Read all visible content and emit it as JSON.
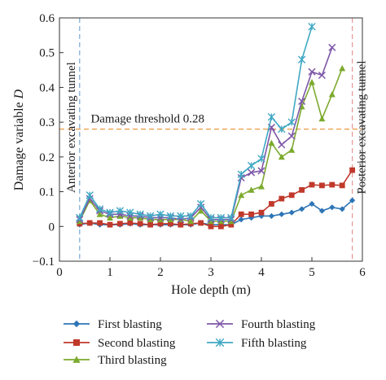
{
  "chart_data": {
    "type": "line",
    "xlabel": "Hole depth (m)",
    "ylabel": "Damage variable D",
    "xlim": [
      0,
      6
    ],
    "ylim": [
      -0.1,
      0.6
    ],
    "xticks": [
      "0",
      "1",
      "2",
      "3",
      "4",
      "5",
      "6"
    ],
    "yticks": [
      "−0.1",
      "0",
      "0.1",
      "0.2",
      "0.3",
      "0.4",
      "0.5",
      "0.6"
    ],
    "grid": false,
    "legend_position": "bottom",
    "threshold": {
      "value": 0.28,
      "label": "Damage threshold 0.28",
      "color": "#f0a050"
    },
    "vlines": [
      {
        "x": 0.4,
        "label": "Anterior excavating tunnel",
        "color": "#7aa7d8"
      },
      {
        "x": 5.8,
        "label": "Posterior excavating tunnel",
        "color": "#e89595"
      }
    ],
    "series": [
      {
        "name": "First blasting",
        "color": "#2e75b6",
        "marker": "diamond",
        "x": [
          0.4,
          0.6,
          0.8,
          1.0,
          1.2,
          1.4,
          1.6,
          1.8,
          2.0,
          2.2,
          2.4,
          2.6,
          2.8,
          3.0,
          3.2,
          3.4,
          3.6,
          3.8,
          4.0,
          4.2,
          4.4,
          4.6,
          4.8,
          5.0,
          5.2,
          5.4,
          5.6,
          5.8
        ],
        "y": [
          0.005,
          0.01,
          0.005,
          0.005,
          0.005,
          0.008,
          0.005,
          0.005,
          0.005,
          0.005,
          0.005,
          0.005,
          0.01,
          0.005,
          0.005,
          0.005,
          0.02,
          0.025,
          0.03,
          0.03,
          0.035,
          0.04,
          0.05,
          0.065,
          0.045,
          0.055,
          0.05,
          0.075
        ]
      },
      {
        "name": "Second blasting",
        "color": "#c0392b",
        "marker": "square",
        "x": [
          0.4,
          0.6,
          0.8,
          1.0,
          1.2,
          1.4,
          1.6,
          1.8,
          2.0,
          2.2,
          2.4,
          2.6,
          2.8,
          3.0,
          3.2,
          3.4,
          3.6,
          3.8,
          4.0,
          4.2,
          4.4,
          4.6,
          4.8,
          5.0,
          5.2,
          5.4,
          5.6,
          5.8
        ],
        "y": [
          0.008,
          0.01,
          0.01,
          0.005,
          0.008,
          0.01,
          0.008,
          0.005,
          0.008,
          0.008,
          0.005,
          0.008,
          0.01,
          0.0,
          0.0,
          0.005,
          0.035,
          0.035,
          0.04,
          0.065,
          0.08,
          0.09,
          0.105,
          0.12,
          0.118,
          0.12,
          0.118,
          0.162
        ]
      },
      {
        "name": "Third blasting",
        "color": "#7caa2e",
        "marker": "triangle",
        "x": [
          0.4,
          0.6,
          0.8,
          1.0,
          1.2,
          1.4,
          1.6,
          1.8,
          2.0,
          2.2,
          2.4,
          2.6,
          2.8,
          3.0,
          3.2,
          3.4,
          3.6,
          3.8,
          4.0,
          4.2,
          4.4,
          4.6,
          4.8,
          5.0,
          5.2,
          5.4,
          5.6
        ],
        "y": [
          0.015,
          0.075,
          0.035,
          0.025,
          0.03,
          0.025,
          0.025,
          0.02,
          0.02,
          0.02,
          0.02,
          0.015,
          0.045,
          0.015,
          0.015,
          0.015,
          0.09,
          0.105,
          0.115,
          0.24,
          0.2,
          0.22,
          0.345,
          0.415,
          0.31,
          0.38,
          0.455
        ]
      },
      {
        "name": "Fourth blasting",
        "color": "#7e57a7",
        "marker": "x",
        "x": [
          0.4,
          0.6,
          0.8,
          1.0,
          1.2,
          1.4,
          1.6,
          1.8,
          2.0,
          2.2,
          2.4,
          2.6,
          2.8,
          3.0,
          3.2,
          3.4,
          3.6,
          3.8,
          4.0,
          4.2,
          4.4,
          4.6,
          4.8,
          5.0,
          5.2,
          5.4
        ],
        "y": [
          0.02,
          0.08,
          0.045,
          0.035,
          0.035,
          0.03,
          0.03,
          0.025,
          0.025,
          0.025,
          0.02,
          0.025,
          0.055,
          0.02,
          0.02,
          0.02,
          0.14,
          0.155,
          0.16,
          0.285,
          0.235,
          0.26,
          0.36,
          0.445,
          0.435,
          0.515
        ]
      },
      {
        "name": "Fifth blasting",
        "color": "#40a8c4",
        "marker": "star",
        "x": [
          0.4,
          0.6,
          0.8,
          1.0,
          1.2,
          1.4,
          1.6,
          1.8,
          2.0,
          2.2,
          2.4,
          2.6,
          2.8,
          3.0,
          3.2,
          3.4,
          3.6,
          3.8,
          4.0,
          4.2,
          4.4,
          4.6,
          4.8,
          5.0
        ],
        "y": [
          0.025,
          0.09,
          0.05,
          0.04,
          0.045,
          0.04,
          0.035,
          0.03,
          0.035,
          0.03,
          0.03,
          0.03,
          0.065,
          0.025,
          0.025,
          0.025,
          0.15,
          0.175,
          0.195,
          0.315,
          0.28,
          0.3,
          0.48,
          0.575
        ]
      }
    ]
  }
}
